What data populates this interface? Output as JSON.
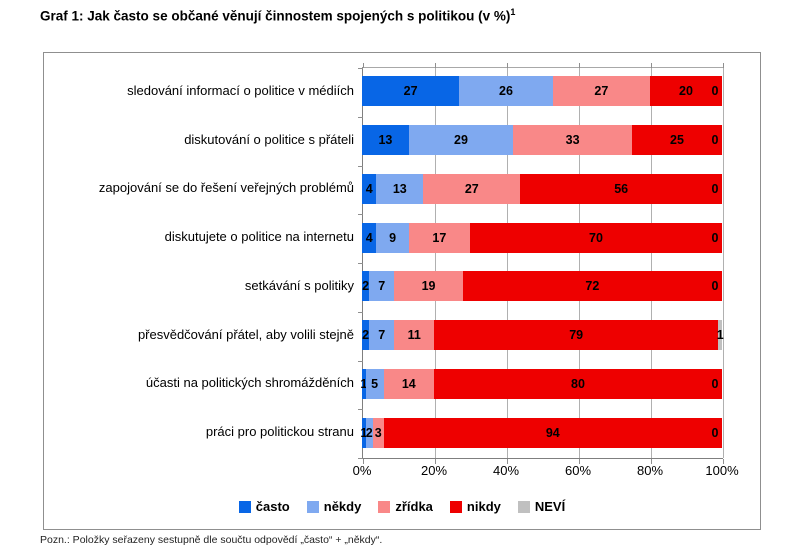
{
  "title": {
    "text": "Graf 1: Jak často se občané věnují činnostem spojených s politikou (v %)",
    "superscript": "1"
  },
  "footnote": "Pozn.: Položky seřazeny sestupně dle součtu odpovědí „často“ + „někdy“.",
  "chart_data": {
    "type": "bar",
    "orientation": "horizontal",
    "stacked": true,
    "grid": true,
    "legend_position": "bottom",
    "categories": [
      "sledování informací o politice v médiích",
      "diskutování o politice s přáteli",
      "zapojování se do řešení veřejných problémů",
      "diskutujete o politice na internetu",
      "setkávání s politiky",
      "přesvědčování přátel, aby volili stejně",
      "účasti na politických shromážděních",
      "práci pro politickou stranu"
    ],
    "series": [
      {
        "name": "často",
        "color": "#0866E6",
        "values": [
          27,
          13,
          4,
          4,
          2,
          2,
          1,
          1
        ]
      },
      {
        "name": "někdy",
        "color": "#7FA9F0",
        "values": [
          26,
          29,
          13,
          9,
          7,
          7,
          5,
          2
        ]
      },
      {
        "name": "zřídka",
        "color": "#F98888",
        "values": [
          27,
          33,
          27,
          17,
          19,
          11,
          14,
          3
        ]
      },
      {
        "name": "nikdy",
        "color": "#EE0000",
        "values": [
          20,
          25,
          56,
          70,
          72,
          79,
          80,
          94
        ]
      },
      {
        "name": "NEVÍ",
        "color": "#C0C0C0",
        "values": [
          0,
          0,
          0,
          0,
          0,
          1,
          0,
          0
        ]
      }
    ],
    "x_axis": {
      "min": 0,
      "max": 100,
      "tick_step": 20,
      "ticks": [
        "0%",
        "20%",
        "40%",
        "60%",
        "80%",
        "100%"
      ]
    }
  }
}
